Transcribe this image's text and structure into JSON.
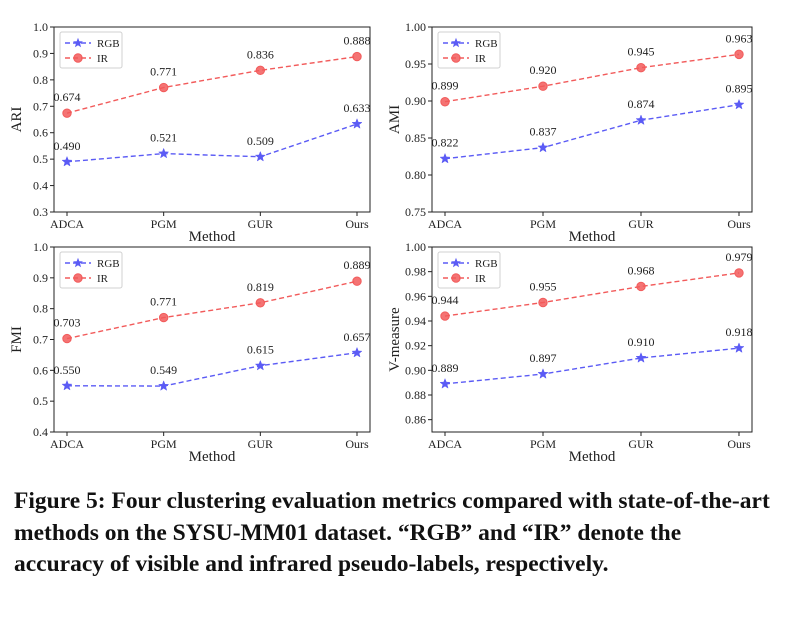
{
  "chart_data": [
    {
      "type": "line",
      "xlabel": "Method",
      "ylabel": "ARI",
      "categories": [
        "ADCA",
        "PGM",
        "GUR",
        "Ours"
      ],
      "ylim": [
        0.3,
        1.0
      ],
      "yticks": [
        "0.3",
        "0.4",
        "0.5",
        "0.6",
        "0.7",
        "0.8",
        "0.9",
        "1.0"
      ],
      "legend": "top-left",
      "series": [
        {
          "name": "RGB",
          "color": "#5b5bf5",
          "marker": "star",
          "values": [
            0.49,
            0.521,
            0.509,
            0.633
          ],
          "labels": [
            "0.490",
            "0.521",
            "0.509",
            "0.633"
          ]
        },
        {
          "name": "IR",
          "color": "#f25b5b",
          "marker": "circle",
          "values": [
            0.674,
            0.771,
            0.836,
            0.888
          ],
          "labels": [
            "0.674",
            "0.771",
            "0.836",
            "0.888"
          ]
        }
      ]
    },
    {
      "type": "line",
      "xlabel": "Method",
      "ylabel": "AMI",
      "categories": [
        "ADCA",
        "PGM",
        "GUR",
        "Ours"
      ],
      "ylim": [
        0.75,
        1.0
      ],
      "yticks": [
        "0.75",
        "0.80",
        "0.85",
        "0.90",
        "0.95",
        "1.00"
      ],
      "legend": "top-left",
      "series": [
        {
          "name": "RGB",
          "color": "#5b5bf5",
          "marker": "star",
          "values": [
            0.822,
            0.837,
            0.874,
            0.895
          ],
          "labels": [
            "0.822",
            "0.837",
            "0.874",
            "0.895"
          ]
        },
        {
          "name": "IR",
          "color": "#f25b5b",
          "marker": "circle",
          "values": [
            0.899,
            0.92,
            0.945,
            0.963
          ],
          "labels": [
            "0.899",
            "0.920",
            "0.945",
            "0.963"
          ]
        }
      ]
    },
    {
      "type": "line",
      "xlabel": "Method",
      "ylabel": "FMI",
      "categories": [
        "ADCA",
        "PGM",
        "GUR",
        "Ours"
      ],
      "ylim": [
        0.4,
        1.0
      ],
      "yticks": [
        "0.4",
        "0.5",
        "0.6",
        "0.7",
        "0.8",
        "0.9",
        "1.0"
      ],
      "legend": "top-left",
      "series": [
        {
          "name": "RGB",
          "color": "#5b5bf5",
          "marker": "star",
          "values": [
            0.55,
            0.549,
            0.615,
            0.657
          ],
          "labels": [
            "0.550",
            "0.549",
            "0.615",
            "0.657"
          ]
        },
        {
          "name": "IR",
          "color": "#f25b5b",
          "marker": "circle",
          "values": [
            0.703,
            0.771,
            0.819,
            0.889
          ],
          "labels": [
            "0.703",
            "0.771",
            "0.819",
            "0.889"
          ]
        }
      ]
    },
    {
      "type": "line",
      "xlabel": "Method",
      "ylabel": "V-measure",
      "categories": [
        "ADCA",
        "PGM",
        "GUR",
        "Ours"
      ],
      "ylim": [
        0.85,
        1.0
      ],
      "yticks": [
        "0.86",
        "0.88",
        "0.90",
        "0.92",
        "0.94",
        "0.96",
        "0.98",
        "1.00"
      ],
      "legend": "top-left",
      "series": [
        {
          "name": "RGB",
          "color": "#5b5bf5",
          "marker": "star",
          "values": [
            0.889,
            0.897,
            0.91,
            0.918
          ],
          "labels": [
            "0.889",
            "0.897",
            "0.910",
            "0.918"
          ]
        },
        {
          "name": "IR",
          "color": "#f25b5b",
          "marker": "circle",
          "values": [
            0.944,
            0.955,
            0.968,
            0.979
          ],
          "labels": [
            "0.944",
            "0.955",
            "0.968",
            "0.979"
          ]
        }
      ]
    }
  ],
  "caption": {
    "label": "Figure 5:",
    "text": "Four clustering evaluation metrics compared with state-of-the-art methods on the SYSU-MM01 dataset. “RGB” and “IR” denote the accuracy of visible and infrared pseudo-labels, respectively."
  }
}
